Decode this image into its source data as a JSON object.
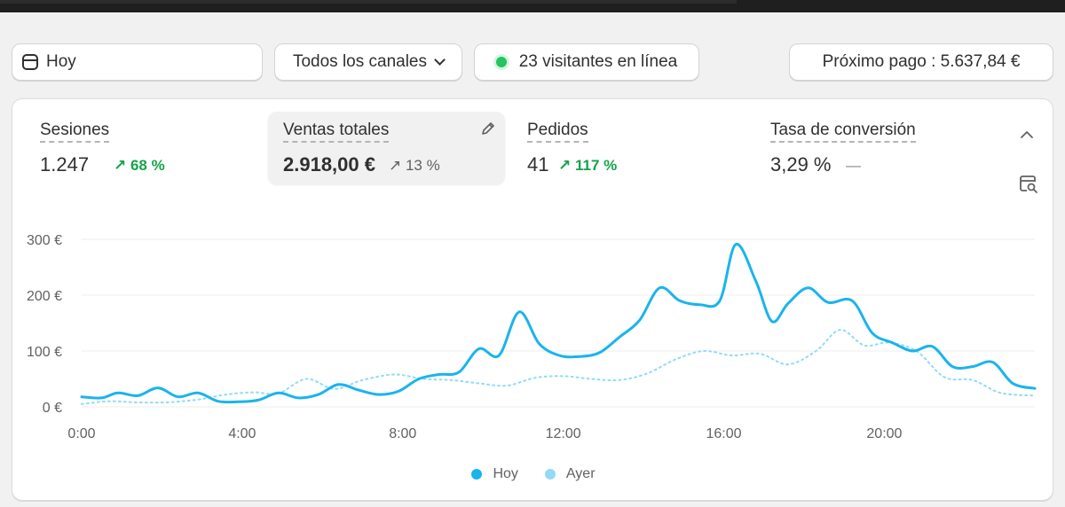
{
  "filters": {
    "date_label": "Hoy",
    "channels_label": "Todos los canales",
    "visitors_label": "23 visitantes en línea",
    "payout_label": "Próximo pago : 5.637,84 €"
  },
  "metrics": [
    {
      "label": "Sesiones",
      "value": "1.247",
      "change": "↗ 68 %"
    },
    {
      "label": "Ventas totales",
      "value": "2.918,00 €",
      "change": "↗ 13 %"
    },
    {
      "label": "Pedidos",
      "value": "41",
      "change": "↗ 117 %"
    },
    {
      "label": "Tasa de conversión",
      "value": "3,29 %",
      "change": "—"
    }
  ],
  "icons": {
    "date": "calendar-icon",
    "channels": "chevron-down-icon",
    "visitors": "online-dot-icon",
    "edit": "pencil-icon",
    "collapse": "chevron-up-icon",
    "table": "table-search-icon"
  },
  "colors": {
    "today": "#1ab4ec",
    "yesterday": "#91dbf7",
    "positive": "#16a34a",
    "online": "#22c55e"
  },
  "chart_data": {
    "type": "line",
    "xlabel": "",
    "ylabel": "",
    "x_ticks": [
      "0:00",
      "4:00",
      "8:00",
      "12:00",
      "16:00",
      "20:00"
    ],
    "y_ticks": [
      "0 €",
      "100 €",
      "200 €",
      "300 €"
    ],
    "ylim": [
      0,
      300
    ],
    "xlim": [
      0,
      23.75
    ],
    "grid": true,
    "legend_position": "bottom",
    "series": [
      {
        "name": "Hoy",
        "style": "solid",
        "points": [
          [
            0,
            18
          ],
          [
            0.5,
            16
          ],
          [
            0.9,
            25
          ],
          [
            1.4,
            20
          ],
          [
            1.9,
            34
          ],
          [
            2.4,
            18
          ],
          [
            2.9,
            25
          ],
          [
            3.4,
            10
          ],
          [
            3.9,
            9
          ],
          [
            4.4,
            12
          ],
          [
            4.9,
            25
          ],
          [
            5.4,
            16
          ],
          [
            5.9,
            22
          ],
          [
            6.4,
            40
          ],
          [
            6.9,
            30
          ],
          [
            7.4,
            22
          ],
          [
            7.9,
            28
          ],
          [
            8.4,
            50
          ],
          [
            8.9,
            58
          ],
          [
            9.4,
            62
          ],
          [
            9.9,
            104
          ],
          [
            10.4,
            92
          ],
          [
            10.9,
            170
          ],
          [
            11.4,
            113
          ],
          [
            11.9,
            92
          ],
          [
            12.4,
            90
          ],
          [
            12.9,
            97
          ],
          [
            13.4,
            125
          ],
          [
            13.9,
            155
          ],
          [
            14.4,
            213
          ],
          [
            14.9,
            190
          ],
          [
            15.4,
            183
          ],
          [
            15.9,
            190
          ],
          [
            16.3,
            291
          ],
          [
            16.8,
            225
          ],
          [
            17.2,
            153
          ],
          [
            17.6,
            185
          ],
          [
            18.1,
            213
          ],
          [
            18.6,
            187
          ],
          [
            19.2,
            190
          ],
          [
            19.7,
            132
          ],
          [
            20.2,
            115
          ],
          [
            20.7,
            100
          ],
          [
            21.2,
            108
          ],
          [
            21.7,
            72
          ],
          [
            22.2,
            72
          ],
          [
            22.7,
            80
          ],
          [
            23.2,
            42
          ],
          [
            23.75,
            33
          ]
        ]
      },
      {
        "name": "Ayer",
        "style": "dotted",
        "points": [
          [
            0,
            5
          ],
          [
            0.7,
            10
          ],
          [
            1.4,
            8
          ],
          [
            2.1,
            8
          ],
          [
            2.9,
            13
          ],
          [
            3.6,
            22
          ],
          [
            4.3,
            26
          ],
          [
            4.9,
            24
          ],
          [
            5.6,
            50
          ],
          [
            6.3,
            32
          ],
          [
            7.0,
            48
          ],
          [
            7.8,
            58
          ],
          [
            8.5,
            50
          ],
          [
            9.2,
            48
          ],
          [
            9.9,
            42
          ],
          [
            10.6,
            38
          ],
          [
            11.3,
            52
          ],
          [
            12.0,
            55
          ],
          [
            12.7,
            50
          ],
          [
            13.4,
            48
          ],
          [
            14.1,
            60
          ],
          [
            14.8,
            85
          ],
          [
            15.5,
            100
          ],
          [
            16.2,
            92
          ],
          [
            16.9,
            95
          ],
          [
            17.6,
            76
          ],
          [
            18.3,
            100
          ],
          [
            18.9,
            138
          ],
          [
            19.5,
            110
          ],
          [
            20.1,
            115
          ],
          [
            20.8,
            100
          ],
          [
            21.5,
            53
          ],
          [
            22.2,
            48
          ],
          [
            22.9,
            25
          ],
          [
            23.75,
            20
          ]
        ]
      }
    ]
  }
}
